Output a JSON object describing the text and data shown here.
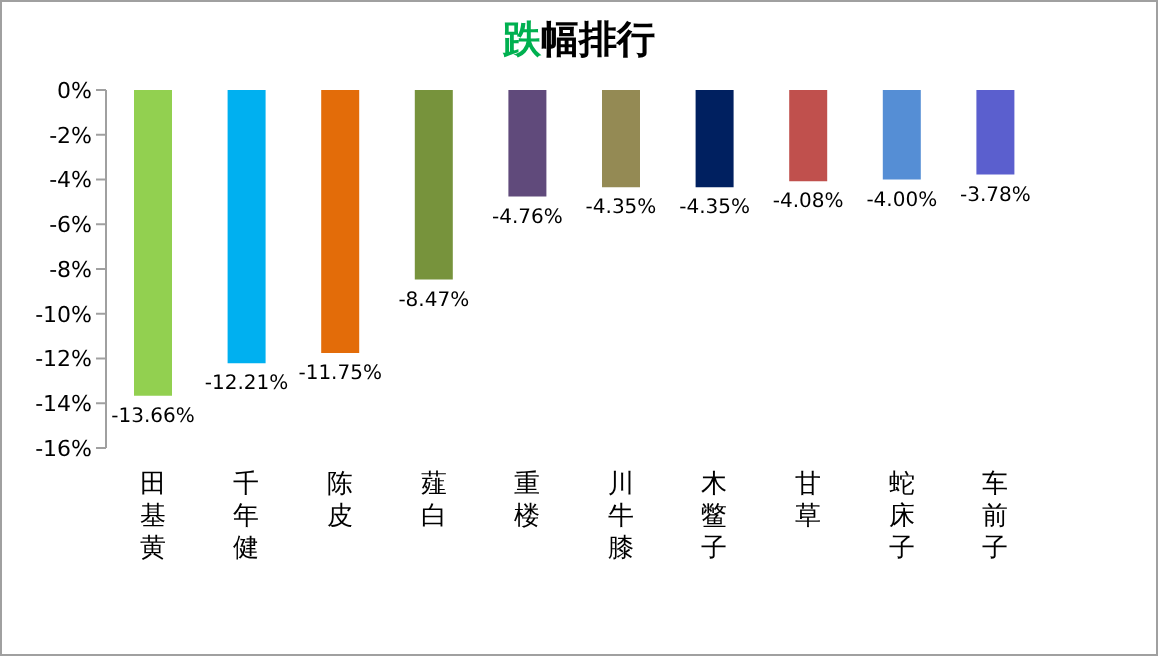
{
  "chart_data": {
    "type": "bar",
    "title": "跌幅排行",
    "categories": [
      "田基黄",
      "千年健",
      "陈皮",
      "薤白",
      "重楼",
      "川牛膝",
      "木鳖子",
      "甘草",
      "蛇床子",
      "车前子"
    ],
    "values": [
      -13.66,
      -12.21,
      -11.75,
      -8.47,
      -4.76,
      -4.35,
      -4.35,
      -4.08,
      -4.0,
      -3.78
    ],
    "colors": [
      "#92d050",
      "#00b0f0",
      "#e36c09",
      "#77933c",
      "#604a7b",
      "#948a54",
      "#002060",
      "#c0504d",
      "#558ed5",
      "#5b5fce"
    ],
    "value_labels": [
      "-13.66%",
      "-12.21%",
      "-11.75%",
      "-8.47%",
      "-4.76%",
      "-4.35%",
      "-4.35%",
      "-4.08%",
      "-4.00%",
      "-3.78%"
    ],
    "ylim": [
      -16,
      0
    ],
    "yticks": [
      {
        "value": -16,
        "label": "-16%"
      },
      {
        "value": -14,
        "label": "-14%"
      },
      {
        "value": -12,
        "label": "-12%"
      },
      {
        "value": -10,
        "label": "-10%"
      },
      {
        "value": -8,
        "label": "-8%"
      },
      {
        "value": -6,
        "label": "-6%"
      },
      {
        "value": -4,
        "label": "-4%"
      },
      {
        "value": -2,
        "label": "-2%"
      },
      {
        "value": 0,
        "label": "0%"
      }
    ],
    "grid": false,
    "legend": false
  }
}
